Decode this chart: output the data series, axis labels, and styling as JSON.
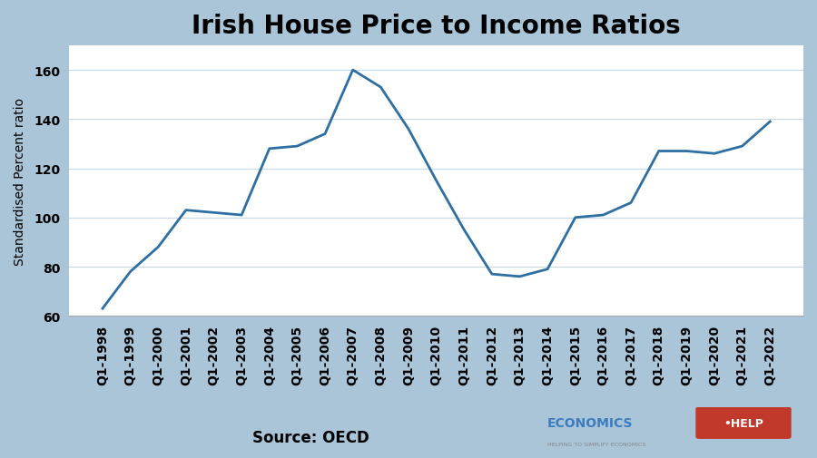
{
  "title": "Irish House Price to Income Ratios",
  "ylabel": "Standardised Percent ratio",
  "source_text": "Source: OECD",
  "ylim": [
    60,
    170
  ],
  "yticks": [
    60,
    80,
    100,
    120,
    140,
    160
  ],
  "line_color": "#2e6fa3",
  "bg_color": "#ffffff",
  "fig_border_color": "#aac4d8",
  "grid_color": "#c8d8e8",
  "x_labels": [
    "Q1-1998",
    "Q1-1999",
    "Q1-2000",
    "Q1-2001",
    "Q1-2002",
    "Q1-2003",
    "Q1-2004",
    "Q1-2005",
    "Q1-2006",
    "Q1-2007",
    "Q1-2008",
    "Q1-2009",
    "Q1-2010",
    "Q1-2011",
    "Q1-2012",
    "Q1-2013",
    "Q1-2014",
    "Q1-2015",
    "Q1-2016",
    "Q1-2017",
    "Q1-2018",
    "Q1-2019",
    "Q1-2020",
    "Q1-2021",
    "Q1-2022"
  ],
  "values": [
    63,
    78,
    88,
    103,
    102,
    101,
    128,
    129,
    134,
    160,
    153,
    136,
    115,
    95,
    77,
    76,
    79,
    100,
    101,
    106,
    127,
    127,
    126,
    129,
    139
  ],
  "title_fontsize": 20,
  "ylabel_fontsize": 10,
  "tick_fontsize": 10,
  "source_fontsize": 12,
  "logo_economics_color": "#3b7dbf",
  "logo_help_bg": "#c0392b",
  "logo_help_text": "white",
  "logo_sub_color": "#888888"
}
